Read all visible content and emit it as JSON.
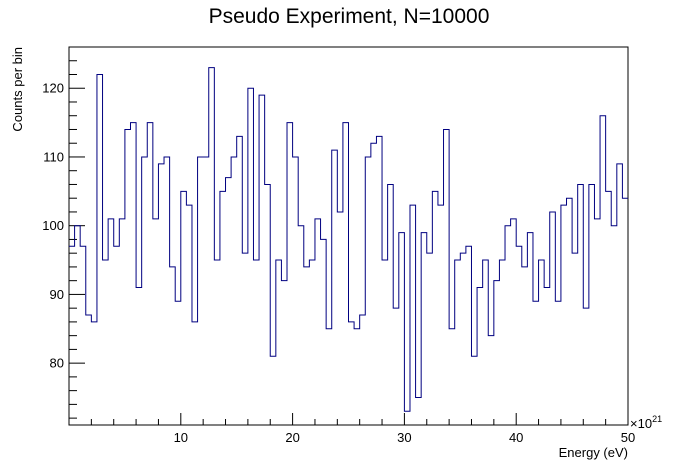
{
  "chart_data": {
    "type": "bar",
    "style": "step-histogram",
    "title": "Pseudo Experiment, N=10000",
    "xlabel": "Energy (eV)",
    "ylabel": "Counts per bin",
    "x_multiplier_label": "×10",
    "x_multiplier_exp": "21",
    "x_range": [
      0,
      50
    ],
    "ylim": [
      71,
      126
    ],
    "x_ticks": [
      10,
      20,
      30,
      40,
      50
    ],
    "y_ticks": [
      80,
      90,
      100,
      110,
      120
    ],
    "line_color": "#000080",
    "bin_edges": [
      0,
      0.5,
      1,
      1.5,
      2,
      2.5,
      3,
      3.5,
      4,
      4.5,
      5,
      5.5,
      6,
      6.5,
      7,
      7.5,
      8,
      8.5,
      9,
      9.5,
      10,
      10.5,
      11,
      11.5,
      12,
      12.5,
      13,
      13.5,
      14,
      14.5,
      15,
      15.5,
      16,
      16.5,
      17,
      17.5,
      18,
      18.5,
      19,
      19.5,
      20,
      20.5,
      21,
      21.5,
      22,
      22.5,
      23,
      23.5,
      24,
      24.5,
      25,
      25.5,
      26,
      26.5,
      27,
      27.5,
      28,
      28.5,
      29,
      29.5,
      30,
      30.5,
      31,
      31.5,
      32,
      32.5,
      33,
      33.5,
      34,
      34.5,
      35,
      35.5,
      36,
      36.5,
      37,
      37.5,
      38,
      38.5,
      39,
      39.5,
      40,
      40.5,
      41,
      41.5,
      42,
      42.5,
      43,
      43.5,
      44,
      44.5,
      45,
      45.5,
      46,
      46.5,
      47,
      47.5,
      48,
      48.5,
      49,
      49.5,
      50
    ],
    "values": [
      97,
      100,
      97,
      87,
      86,
      122,
      95,
      101,
      97,
      101,
      114,
      115,
      91,
      110,
      115,
      101,
      109,
      110,
      94,
      89,
      105,
      103,
      86,
      110,
      110,
      123,
      95,
      105,
      107,
      110,
      113,
      96,
      120,
      95,
      119,
      106,
      81,
      95,
      92,
      115,
      110,
      100,
      94,
      95,
      101,
      98,
      85,
      111,
      102,
      115,
      86,
      85,
      87,
      110,
      112,
      113,
      95,
      106,
      88,
      99,
      73,
      103,
      75,
      99,
      96,
      105,
      103,
      114,
      85,
      95,
      96,
      97,
      81,
      91,
      95,
      84,
      92,
      95,
      100,
      101,
      97,
      94,
      99,
      89,
      95,
      91,
      102,
      89,
      103,
      104,
      96,
      106,
      88,
      106,
      101,
      116,
      105,
      100,
      109,
      104
    ]
  }
}
